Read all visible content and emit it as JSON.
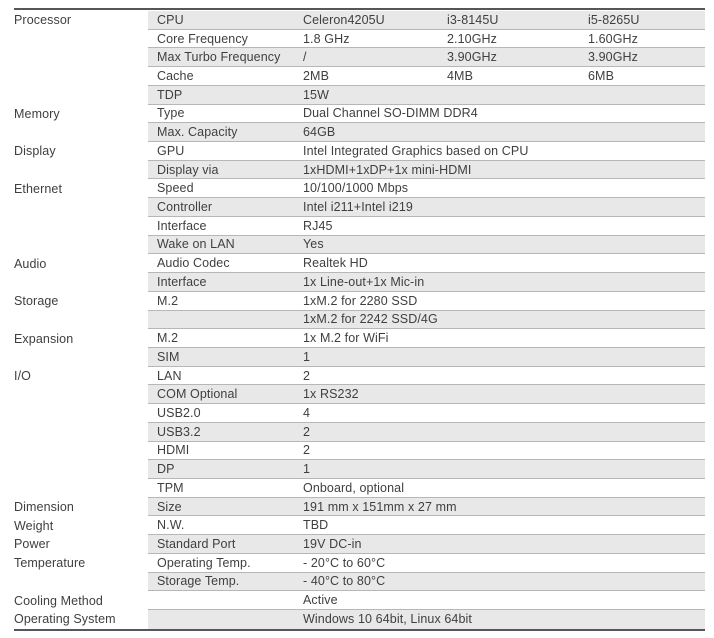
{
  "colors": {
    "row_stripe": "#e8e8e8",
    "row_separator": "#b7b7b7",
    "outer_border": "#555659",
    "text": "#3f3f3f",
    "background": "#ffffff"
  },
  "table": {
    "cpu_variant_headers": [
      "Celeron4205U",
      "i3-8145U",
      "i5-8265U"
    ],
    "rows": [
      {
        "category": "Processor",
        "name": "CPU",
        "values": [
          "Celeron4205U",
          "i3-8145U",
          "i5-8265U"
        ]
      },
      {
        "category": "",
        "name": "Core Frequency",
        "values": [
          "1.8 GHz",
          "2.10GHz",
          "1.60GHz"
        ]
      },
      {
        "category": "",
        "name": "Max Turbo Frequency",
        "values": [
          "/",
          "3.90GHz",
          "3.90GHz"
        ]
      },
      {
        "category": "",
        "name": "Cache",
        "values": [
          "2MB",
          "4MB",
          "6MB"
        ]
      },
      {
        "category": "",
        "name": "TDP",
        "values": [
          "15W"
        ]
      },
      {
        "category": "Memory",
        "name": "Type",
        "values": [
          "Dual Channel SO-DIMM DDR4"
        ]
      },
      {
        "category": "",
        "name": "Max. Capacity",
        "values": [
          "64GB"
        ]
      },
      {
        "category": "Display",
        "name": "GPU",
        "values": [
          "Intel Integrated Graphics based on CPU"
        ]
      },
      {
        "category": "",
        "name": "Display via",
        "values": [
          "1xHDMI+1xDP+1x mini-HDMI"
        ]
      },
      {
        "category": "Ethernet",
        "name": "Speed",
        "values": [
          "10/100/1000 Mbps"
        ]
      },
      {
        "category": "",
        "name": "Controller",
        "values": [
          "Intel i211+Intel i219"
        ]
      },
      {
        "category": "",
        "name": "Interface",
        "values": [
          "RJ45"
        ]
      },
      {
        "category": "",
        "name": "Wake on LAN",
        "values": [
          "Yes"
        ]
      },
      {
        "category": "Audio",
        "name": "Audio Codec",
        "values": [
          "Realtek HD"
        ]
      },
      {
        "category": "",
        "name": "Interface",
        "values": [
          "1x Line-out+1x Mic-in"
        ]
      },
      {
        "category": "Storage",
        "name": "M.2",
        "values": [
          "1xM.2 for 2280 SSD"
        ]
      },
      {
        "category": "",
        "name": "",
        "values": [
          "1xM.2 for 2242 SSD/4G"
        ]
      },
      {
        "category": "Expansion",
        "name": "M.2",
        "values": [
          "1x M.2 for WiFi"
        ]
      },
      {
        "category": "",
        "name": "SIM",
        "values": [
          "1"
        ]
      },
      {
        "category": "I/O",
        "name": "LAN",
        "values": [
          "2"
        ]
      },
      {
        "category": "",
        "name": "COM Optional",
        "values": [
          "1x RS232"
        ]
      },
      {
        "category": "",
        "name": "USB2.0",
        "values": [
          "4"
        ]
      },
      {
        "category": "",
        "name": "USB3.2",
        "values": [
          "2"
        ]
      },
      {
        "category": "",
        "name": "HDMI",
        "values": [
          "2"
        ]
      },
      {
        "category": "",
        "name": "DP",
        "values": [
          "1"
        ]
      },
      {
        "category": "",
        "name": "TPM",
        "values": [
          "Onboard, optional"
        ]
      },
      {
        "category": "Dimension",
        "name": "Size",
        "values": [
          "191 mm x 151mm x 27 mm"
        ]
      },
      {
        "category": "Weight",
        "name": "N.W.",
        "values": [
          "TBD"
        ]
      },
      {
        "category": "Power",
        "name": "Standard Port",
        "values": [
          "19V DC-in"
        ]
      },
      {
        "category": "Temperature",
        "name": "Operating Temp.",
        "values": [
          "- 20°C to 60°C"
        ]
      },
      {
        "category": "",
        "name": "Storage Temp.",
        "values": [
          "- 40°C to 80°C"
        ]
      },
      {
        "category": "Cooling Method",
        "name": "",
        "values": [
          "Active"
        ]
      },
      {
        "category": "Operating System",
        "name": "",
        "values": [
          "Windows 10 64bit, Linux 64bit"
        ]
      }
    ]
  }
}
